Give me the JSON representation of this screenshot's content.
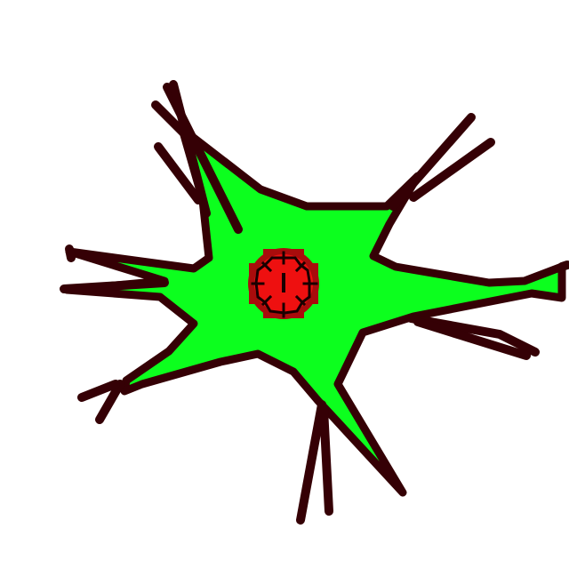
{
  "scene": {
    "background_color": "#ffffff",
    "creature": {
      "name": "green-star-creature",
      "body_color": "#0cff1e",
      "outline_color": "#350005",
      "tendril_count": 11
    },
    "core": {
      "name": "red-core",
      "fill_color": "#ee1010",
      "edge_color": "#a90c0c",
      "symbol_color": "#1a0000",
      "symbol": "crosshair-icon"
    }
  }
}
